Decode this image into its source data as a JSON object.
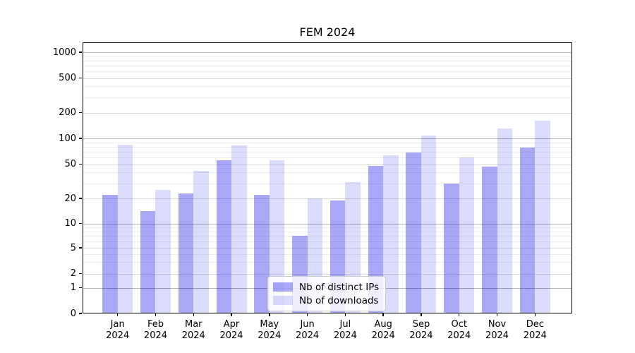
{
  "chart_data": {
    "type": "bar",
    "title": "FEM 2024",
    "categories": [
      "Jan",
      "Feb",
      "Mar",
      "Apr",
      "May",
      "Jun",
      "Jul",
      "Aug",
      "Sep",
      "Oct",
      "Nov",
      "Dec"
    ],
    "x_tick_year": "2024",
    "series": [
      {
        "name": "Nb of distinct IPs",
        "values": [
          22,
          14,
          23,
          56,
          22,
          7,
          19,
          48,
          68,
          30,
          47,
          78
        ],
        "color_hex": "#aaaaf9",
        "fill": "rgba(0,0,230,0.34)"
      },
      {
        "name": "Nb of downloads",
        "values": [
          85,
          25,
          42,
          83,
          56,
          20,
          31,
          64,
          108,
          60,
          130,
          160
        ],
        "color_hex": "#dbdbfb",
        "fill": "rgba(0,0,230,0.14)"
      }
    ],
    "xlabel": "",
    "ylabel": "",
    "yscale": "symlog",
    "yticks": [
      0,
      1,
      2,
      5,
      10,
      20,
      50,
      100,
      200,
      500,
      1000
    ],
    "ylim": [
      0,
      1300
    ],
    "grid": true,
    "legend_position": "lower center"
  },
  "colors": {
    "background": "#ffffff",
    "axis": "#000000",
    "grid_major": "#b4b4b4",
    "grid_mid": "#dcdcdc",
    "grid_minor": "#eeeeee",
    "bar_distinct_ips": "#aaaaf9",
    "bar_downloads": "#dbdbfb",
    "legend_border": "#cccccc",
    "text": "#000000"
  }
}
